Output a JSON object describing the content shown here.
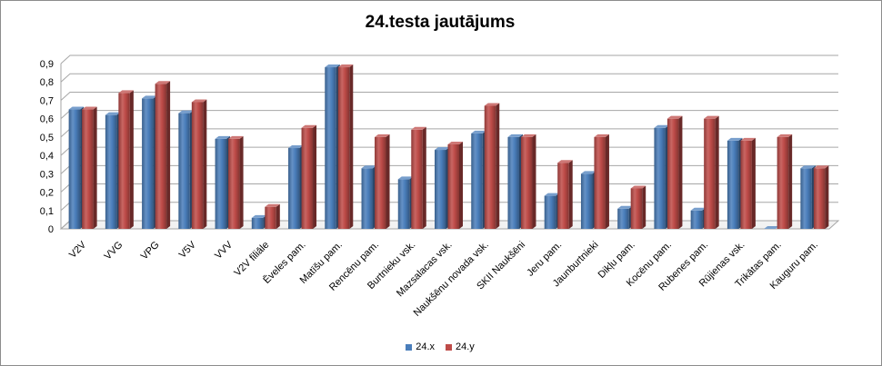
{
  "chart_data": {
    "type": "bar",
    "title": "24.testa jautājums",
    "xlabel": "",
    "ylabel": "",
    "ylim": [
      0,
      0.9
    ],
    "yticks": [
      "0",
      "0,1",
      "0,2",
      "0,3",
      "0,4",
      "0,5",
      "0,6",
      "0,7",
      "0,8",
      "0,9"
    ],
    "grid": true,
    "legend": "bottom",
    "categories": [
      "V2V",
      "VVG",
      "VPG",
      "V5V",
      "VVV",
      "V2V filiāle",
      "Ēveles pam.",
      "Matīšu pam.",
      "Rencēnu pam.",
      "Burtnieku vsk.",
      "Mazsalacas vsk.",
      "Naukšēnu novada vsk.",
      "SKII Naukšēni",
      "Jeru pam.",
      "Jaunburtnieki",
      "Dikļu pam.",
      "Kocēnu pam.",
      "Rubenes pam.",
      "Rūjienas vsk.",
      "Trikātas pam.",
      "Kauguru pam."
    ],
    "series": [
      {
        "name": "24.x",
        "color": "#4a7ebb",
        "values": [
          0.65,
          0.62,
          0.71,
          0.63,
          0.49,
          0.06,
          0.44,
          0.88,
          0.33,
          0.27,
          0.43,
          0.52,
          0.5,
          0.18,
          0.3,
          0.11,
          0.55,
          0.1,
          0.48,
          0.0,
          0.33
        ]
      },
      {
        "name": "24.y",
        "color": "#be4b48",
        "values": [
          0.65,
          0.74,
          0.79,
          0.69,
          0.49,
          0.12,
          0.55,
          0.88,
          0.5,
          0.54,
          0.46,
          0.67,
          0.5,
          0.36,
          0.5,
          0.22,
          0.6,
          0.6,
          0.48,
          0.5,
          0.33
        ]
      }
    ]
  }
}
